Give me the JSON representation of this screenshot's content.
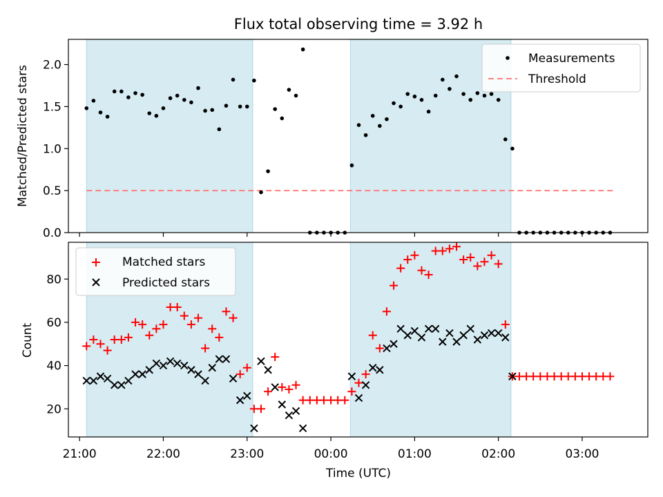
{
  "figure_title": "Flux total observing time = 3.92 h",
  "shaded_intervals": [
    [
      "21:05",
      "23:04"
    ],
    [
      "00:14",
      "02:09"
    ]
  ],
  "chart_data": [
    {
      "type": "scatter",
      "ylabel": "Matched/Predicted stars",
      "xlim": [
        "20:52",
        "03:47"
      ],
      "ylim": [
        0,
        2.3
      ],
      "yticks": [
        0.0,
        0.5,
        1.0,
        1.5,
        2.0
      ],
      "ytick_labels": [
        "0.0",
        "0.5",
        "1.0",
        "1.5",
        "2.0"
      ],
      "legend": {
        "placement": "top-right",
        "entries": [
          "Measurements",
          "Threshold"
        ]
      },
      "threshold": {
        "name": "Threshold",
        "value": 0.5,
        "x_range": [
          "21:05",
          "03:22"
        ],
        "color": "#ff7f7f"
      },
      "series": [
        {
          "name": "Measurements",
          "color": "#000000",
          "x": [
            "21:05",
            "21:10",
            "21:15",
            "21:20",
            "21:25",
            "21:30",
            "21:35",
            "21:40",
            "21:45",
            "21:50",
            "21:55",
            "22:00",
            "22:05",
            "22:10",
            "22:15",
            "22:20",
            "22:25",
            "22:30",
            "22:35",
            "22:40",
            "22:45",
            "22:50",
            "22:55",
            "23:00",
            "23:05",
            "23:10",
            "23:15",
            "23:20",
            "23:25",
            "23:30",
            "23:35",
            "23:40",
            "23:45",
            "23:50",
            "23:55",
            "00:00",
            "00:05",
            "00:10",
            "00:15",
            "00:20",
            "00:25",
            "00:30",
            "00:35",
            "00:40",
            "00:45",
            "00:50",
            "00:55",
            "01:00",
            "01:05",
            "01:10",
            "01:15",
            "01:20",
            "01:25",
            "01:30",
            "01:35",
            "01:40",
            "01:45",
            "01:50",
            "01:55",
            "02:00",
            "02:05",
            "02:10",
            "02:15",
            "02:20",
            "02:25",
            "02:30",
            "02:35",
            "02:40",
            "02:45",
            "02:50",
            "02:55",
            "03:00",
            "03:05",
            "03:10",
            "03:15",
            "03:20"
          ],
          "y": [
            1.48,
            1.57,
            1.43,
            1.38,
            1.68,
            1.68,
            1.61,
            1.66,
            1.64,
            1.42,
            1.39,
            1.48,
            1.6,
            1.63,
            1.58,
            1.55,
            1.72,
            1.45,
            1.46,
            1.23,
            1.51,
            1.82,
            1.5,
            1.5,
            1.81,
            0.48,
            0.73,
            1.47,
            1.36,
            1.7,
            1.63,
            2.18,
            0.0,
            0.0,
            0.0,
            0.0,
            0.0,
            0.0,
            0.8,
            1.28,
            1.16,
            1.39,
            1.27,
            1.35,
            1.54,
            1.5,
            1.65,
            1.62,
            1.58,
            1.44,
            1.63,
            1.82,
            1.71,
            1.86,
            1.65,
            1.58,
            1.66,
            1.63,
            1.65,
            1.58,
            1.11,
            1.0,
            0.0,
            0.0,
            0.0,
            0.0,
            0.0,
            0.0,
            0.0,
            0.0,
            0.0,
            0.0,
            0.0,
            0.0,
            0.0,
            0.0
          ]
        }
      ]
    },
    {
      "type": "scatter",
      "xlabel": "Time (UTC)",
      "ylabel": "Count",
      "xlim": [
        "20:52",
        "03:47"
      ],
      "ylim": [
        7,
        97
      ],
      "yticks": [
        20,
        40,
        60,
        80
      ],
      "ytick_labels": [
        "20",
        "40",
        "60",
        "80"
      ],
      "xticks": [
        "21:00",
        "22:00",
        "23:00",
        "00:00",
        "01:00",
        "02:00",
        "03:00"
      ],
      "xtick_labels": [
        "21:00",
        "22:00",
        "23:00",
        "00:00",
        "01:00",
        "02:00",
        "03:00"
      ],
      "legend": {
        "placement": "top-left",
        "entries": [
          "Matched stars",
          "Predicted stars"
        ]
      },
      "series": [
        {
          "name": "Matched stars",
          "color": "#ff0000",
          "marker": "plus",
          "x": [
            "21:05",
            "21:10",
            "21:15",
            "21:20",
            "21:25",
            "21:30",
            "21:35",
            "21:40",
            "21:45",
            "21:50",
            "21:55",
            "22:00",
            "22:05",
            "22:10",
            "22:15",
            "22:20",
            "22:25",
            "22:30",
            "22:35",
            "22:40",
            "22:45",
            "22:50",
            "22:55",
            "23:00",
            "23:05",
            "23:10",
            "23:15",
            "23:20",
            "23:25",
            "23:30",
            "23:35",
            "23:40",
            "23:45",
            "23:50",
            "23:55",
            "00:00",
            "00:05",
            "00:10",
            "00:15",
            "00:20",
            "00:25",
            "00:30",
            "00:35",
            "00:40",
            "00:45",
            "00:50",
            "00:55",
            "01:00",
            "01:05",
            "01:10",
            "01:15",
            "01:20",
            "01:25",
            "01:30",
            "01:35",
            "01:40",
            "01:45",
            "01:50",
            "01:55",
            "02:00",
            "02:05",
            "02:10",
            "02:15",
            "02:20",
            "02:25",
            "02:30",
            "02:35",
            "02:40",
            "02:45",
            "02:50",
            "02:55",
            "03:00",
            "03:05",
            "03:10",
            "03:15",
            "03:20"
          ],
          "y": [
            49,
            52,
            50,
            47,
            52,
            52,
            53,
            60,
            59,
            54,
            57,
            59,
            67,
            67,
            63,
            59,
            62,
            48,
            57,
            53,
            65,
            62,
            36,
            39,
            20,
            20,
            28,
            44,
            30,
            29,
            31,
            24,
            24,
            24,
            24,
            24,
            24,
            24,
            28,
            32,
            36,
            54,
            48,
            65,
            77,
            85,
            89,
            91,
            84,
            82,
            93,
            93,
            94,
            95,
            89,
            90,
            86,
            88,
            91,
            87,
            59,
            35,
            35,
            35,
            35,
            35,
            35,
            35,
            35,
            35,
            35,
            35,
            35,
            35,
            35,
            35
          ]
        },
        {
          "name": "Predicted stars",
          "color": "#000000",
          "marker": "x",
          "x": [
            "21:05",
            "21:10",
            "21:15",
            "21:20",
            "21:25",
            "21:30",
            "21:35",
            "21:40",
            "21:45",
            "21:50",
            "21:55",
            "22:00",
            "22:05",
            "22:10",
            "22:15",
            "22:20",
            "22:25",
            "22:30",
            "22:35",
            "22:40",
            "22:45",
            "22:50",
            "22:55",
            "23:00",
            "23:05",
            "23:10",
            "23:15",
            "23:20",
            "23:25",
            "23:30",
            "23:35",
            "23:40",
            "00:15",
            "00:20",
            "00:25",
            "00:30",
            "00:35",
            "00:40",
            "00:45",
            "00:50",
            "00:55",
            "01:00",
            "01:05",
            "01:10",
            "01:15",
            "01:20",
            "01:25",
            "01:30",
            "01:35",
            "01:40",
            "01:45",
            "01:50",
            "01:55",
            "02:00",
            "02:05",
            "02:10"
          ],
          "y": [
            33,
            33,
            35,
            34,
            31,
            31,
            33,
            36,
            36,
            38,
            41,
            40,
            42,
            41,
            40,
            38,
            36,
            33,
            39,
            43,
            43,
            34,
            24,
            26,
            11,
            42,
            38,
            30,
            22,
            17,
            19,
            11,
            35,
            25,
            31,
            39,
            38,
            48,
            50,
            57,
            54,
            56,
            53,
            57,
            57,
            51,
            55,
            51,
            54,
            57,
            52,
            54,
            55,
            55,
            53,
            35
          ]
        }
      ]
    }
  ]
}
